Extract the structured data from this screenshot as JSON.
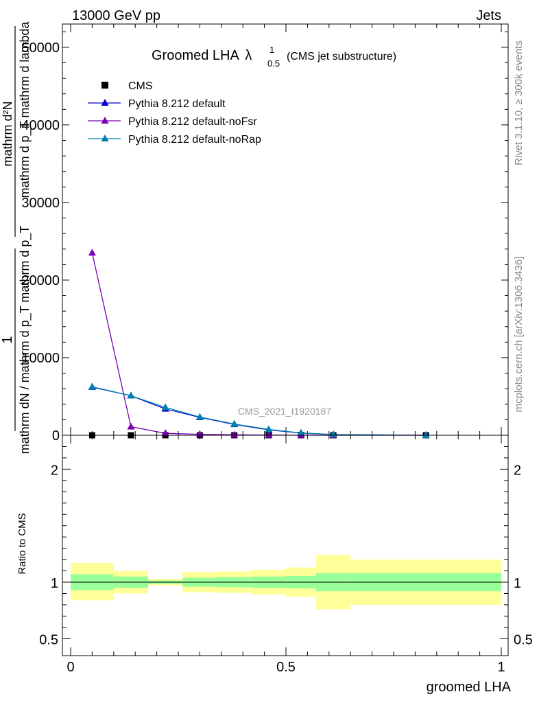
{
  "header": {
    "left": "13000 GeV pp",
    "right": "Jets"
  },
  "side_labels": {
    "rivet": "Rivet 3.1.10, ≥ 300k events",
    "mcplots": "mcplots.cern.ch [arXiv:1306.3436]"
  },
  "watermark": "CMS_2021_I1920187",
  "chart_data": [
    {
      "type": "line",
      "panel": "main",
      "title_main": "Groomed LHA",
      "title_lambda": "λ",
      "title_sup": "1",
      "title_sub": "0.5",
      "title_suffix": "(CMS jet substructure)",
      "ylabel_num": "1",
      "ylabel_den": "mathrm dN / mathrm d p_T mathrm d p_T",
      "ylabel_num2": "mathrm d²N",
      "ylabel_den2": "mathrm d p_T mathrm d lambda",
      "xlim": [
        0,
        1
      ],
      "ylim": [
        0,
        53000
      ],
      "yticks": [
        0,
        10000,
        20000,
        30000,
        40000,
        50000
      ],
      "ytick_labels": [
        "0",
        "10000",
        "20000",
        "30000",
        "40000",
        "50000"
      ],
      "bin_edges": [
        0,
        0.1,
        0.18,
        0.26,
        0.34,
        0.42,
        0.5,
        0.57,
        0.65,
        1.0
      ],
      "x": [
        0.05,
        0.14,
        0.22,
        0.3,
        0.38,
        0.46,
        0.535,
        0.61,
        0.825
      ],
      "series": [
        {
          "name": "CMS",
          "marker": "square",
          "color": "#000000",
          "values": [
            0,
            0,
            0,
            0,
            0,
            0,
            0,
            0,
            0
          ]
        },
        {
          "name": "Pythia 8.212 default",
          "marker": "triangle",
          "color": "#0000cc",
          "values": [
            6200,
            5100,
            3400,
            2300,
            1400,
            700,
            280,
            90,
            0
          ]
        },
        {
          "name": "Pythia 8.212 default-noFsr",
          "marker": "triangle",
          "color": "#7a00b4",
          "values": [
            23500,
            1100,
            250,
            120,
            60,
            30,
            10,
            5,
            0
          ]
        },
        {
          "name": "Pythia 8.212 default-noRap",
          "marker": "triangle",
          "color": "#0080b0",
          "values": [
            6250,
            5100,
            3600,
            2350,
            1450,
            750,
            300,
            100,
            0
          ]
        }
      ]
    },
    {
      "type": "area",
      "panel": "ratio",
      "ylabel": "Ratio to CMS",
      "xlabel": "groomed LHA",
      "xlim": [
        0,
        1
      ],
      "ylim": [
        0.35,
        2.3
      ],
      "yticks": [
        0.5,
        1,
        2
      ],
      "ytick_labels": [
        "0.5",
        "1",
        "2"
      ],
      "xticks": [
        0,
        0.5,
        1
      ],
      "xtick_labels": [
        "0",
        "0.5",
        "1"
      ],
      "bin_edges": [
        0,
        0.1,
        0.18,
        0.26,
        0.34,
        0.42,
        0.5,
        0.57,
        0.65,
        1.0
      ],
      "band_inner": [
        [
          0.93,
          1.07
        ],
        [
          0.95,
          1.05
        ],
        [
          0.985,
          1.015
        ],
        [
          0.96,
          1.04
        ],
        [
          0.955,
          1.045
        ],
        [
          0.95,
          1.05
        ],
        [
          0.945,
          1.055
        ],
        [
          0.92,
          1.08
        ],
        [
          0.92,
          1.08
        ]
      ],
      "band_outer": [
        [
          0.84,
          1.17
        ],
        [
          0.9,
          1.1
        ],
        [
          0.97,
          1.03
        ],
        [
          0.91,
          1.09
        ],
        [
          0.905,
          1.095
        ],
        [
          0.89,
          1.11
        ],
        [
          0.87,
          1.13
        ],
        [
          0.76,
          1.24
        ],
        [
          0.8,
          1.2
        ]
      ],
      "colors": {
        "inner": "#99ff99",
        "outer": "#ffff99",
        "line": "#000000"
      }
    }
  ]
}
